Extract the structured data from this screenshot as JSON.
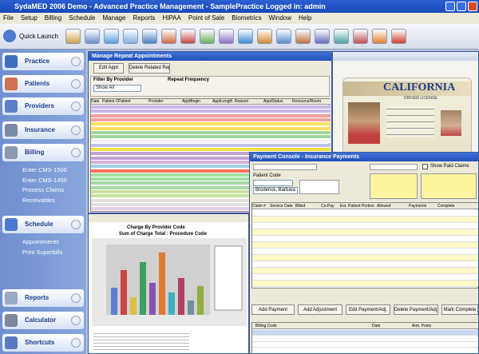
{
  "title_bar": {
    "title": "SydaMED 2006 Demo - Advanced Practice Management - SamplePractice  Logged in: admin"
  },
  "menu": [
    "File",
    "Setup",
    "Billing",
    "Schedule",
    "Manage",
    "Reports",
    "HIPAA",
    "Point of Sale",
    "Biometrics",
    "Window",
    "Help"
  ],
  "toolbar": {
    "quick_launch": "Quick Launch"
  },
  "sidebar": [
    {
      "label": "Practice"
    },
    {
      "label": "Patients"
    },
    {
      "label": "Providers"
    },
    {
      "label": "Insurance"
    },
    {
      "label": "Billing",
      "items": [
        "Enter CMS-1500",
        "Enter CMS-1450",
        "Process Claims",
        "Receivables"
      ]
    },
    {
      "label": "Schedule",
      "items": [
        "Appointments",
        "Print Superbills"
      ]
    },
    {
      "label": "Reports"
    },
    {
      "label": "Calculator"
    },
    {
      "label": "Shortcuts"
    }
  ],
  "windows": {
    "repeat": {
      "title": "Manage Repeat Appointments",
      "buttons": [
        "Edit Appt",
        "Delete Related Repeats"
      ],
      "filter_label": "Filter By Provider",
      "filter_value": "Show All",
      "frequency_label": "Repeat Frequency",
      "columns": [
        "Date",
        "Patient Code",
        "Patient",
        "Provider",
        "ApptBegin",
        "ApptLength",
        "Reason",
        "ApptStatus",
        "Resource/Room"
      ]
    },
    "license": {
      "state": "CALIFORNIA",
      "subtitle": "DRIVER LICENSE"
    },
    "report": {
      "title": "Charge By Provider Code",
      "chart_title": "Sum of Charge Total : Procedure Code"
    },
    "payment": {
      "title": "Payment Console - Insurance Payments",
      "show_paid": "Show Paid Claims",
      "patient_code_label": "Patient Code",
      "patient_name": "Broderick, Barbara",
      "columns": [
        "Claim #",
        "Service Date",
        "Billed",
        "Co-Pay",
        "Est. Patient Portion",
        "Allowed",
        "Payments",
        "Complete"
      ],
      "buttons": [
        "Add Payment",
        "Add Adjustment",
        "Edit Payment/Adj.",
        "Delete Payment/Adj.",
        "Mark Complete"
      ],
      "lower_columns": [
        "Billing Code",
        "Date",
        "Amt. Posts"
      ]
    }
  }
}
